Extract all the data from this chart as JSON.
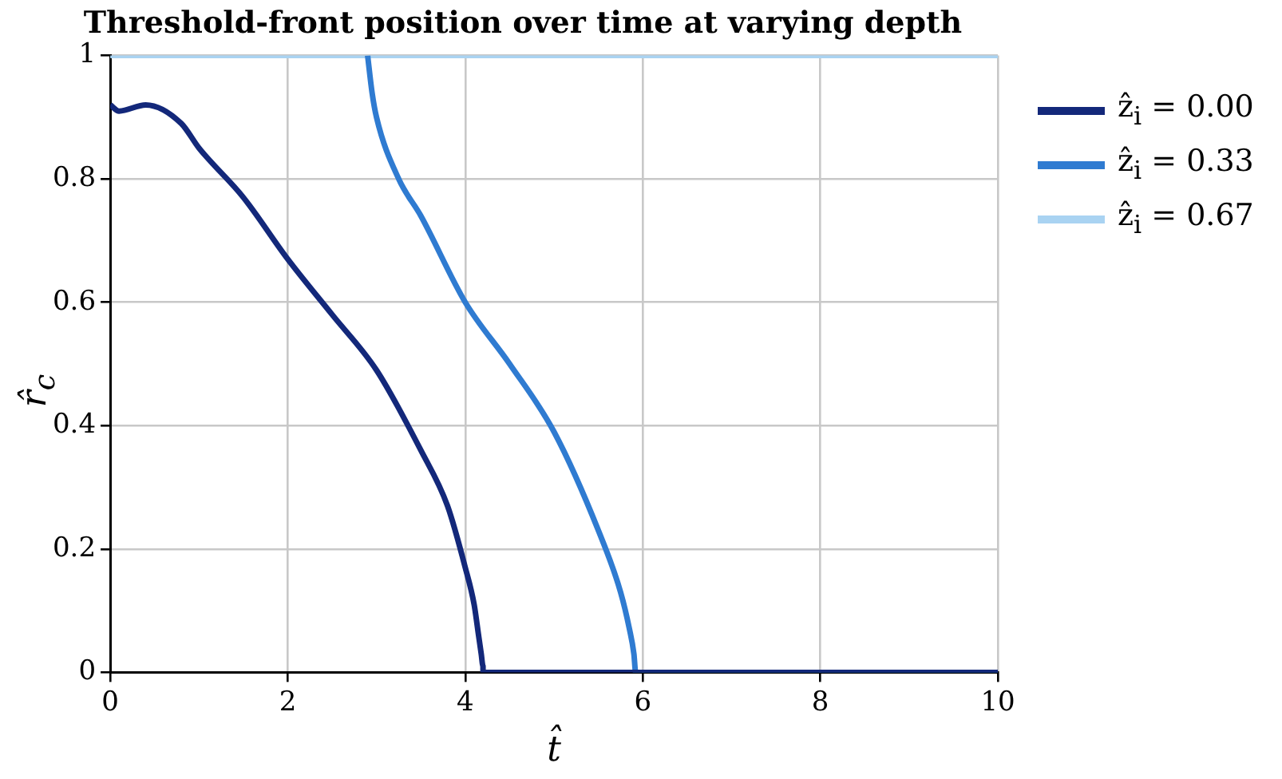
{
  "chart_data": {
    "type": "line",
    "title": "Threshold-front position over time at varying depth",
    "xlabel": "t̂",
    "ylabel": "r̂$_{c}$",
    "series": [
      {
        "name": "ẑ$_{i}$ = 0.00",
        "color": "#13287a",
        "x": [
          0,
          0.1,
          0.4,
          0.8,
          1,
          1.5,
          2,
          2.5,
          3,
          3.5,
          3.8,
          4,
          4.1,
          4.15,
          4.18,
          4.2,
          4.2,
          10
        ],
        "values": [
          0.92,
          0.91,
          0.92,
          0.89,
          0.85,
          0.77,
          0.67,
          0.58,
          0.49,
          0.36,
          0.27,
          0.17,
          0.11,
          0.06,
          0.03,
          0.01,
          0,
          0
        ]
      },
      {
        "name": "ẑ$_{i}$ = 0.33",
        "color": "#2f7bd1",
        "x": [
          2.9,
          2.95,
          3,
          3.25,
          3.5,
          4,
          4.5,
          5,
          5.5,
          5.75,
          5.85,
          5.9,
          5.92,
          10
        ],
        "values": [
          1,
          0.94,
          0.9,
          0.8,
          0.74,
          0.6,
          0.5,
          0.39,
          0.23,
          0.13,
          0.07,
          0.03,
          0,
          0
        ]
      },
      {
        "name": "ẑ$_{i}$ = 0.67",
        "color": "#a9d3f2",
        "x": [
          0,
          10
        ],
        "values": [
          1,
          1
        ]
      }
    ],
    "xlim": [
      0,
      10
    ],
    "xticks": [
      0,
      2,
      4,
      6,
      8,
      10
    ],
    "ylim": [
      0,
      1
    ],
    "yticks": [
      0,
      0.2,
      0.4,
      0.6,
      0.8,
      1
    ],
    "grid": true,
    "legend": "top right",
    "marker": "none",
    "line_style": "solid"
  }
}
